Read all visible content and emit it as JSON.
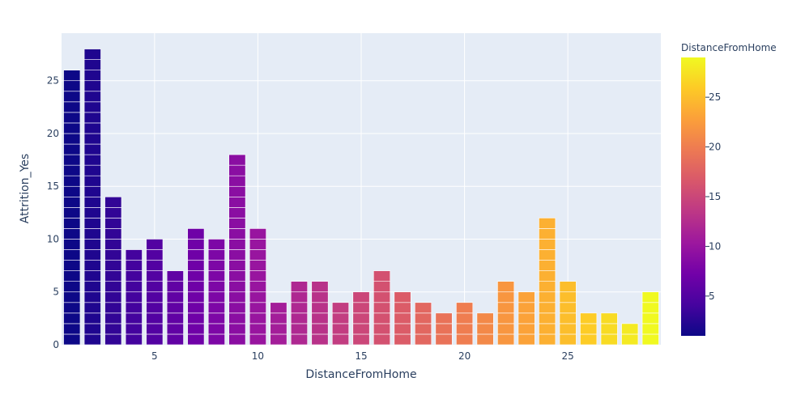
{
  "chart_data": {
    "type": "bar",
    "title": "",
    "xlabel": "DistanceFromHome",
    "ylabel": "Attrition_Yes",
    "x": [
      1,
      2,
      3,
      4,
      5,
      6,
      7,
      8,
      9,
      10,
      11,
      12,
      13,
      14,
      15,
      16,
      17,
      18,
      19,
      20,
      21,
      22,
      23,
      24,
      25,
      26,
      27,
      28,
      29
    ],
    "values": [
      26,
      28,
      14,
      9,
      10,
      7,
      11,
      10,
      18,
      11,
      4,
      6,
      6,
      4,
      5,
      7,
      5,
      4,
      3,
      4,
      3,
      6,
      5,
      12,
      6,
      3,
      3,
      2,
      5
    ],
    "xlim": [
      0.5,
      29.5
    ],
    "ylim": [
      0,
      29.5
    ],
    "x_ticks": [
      5,
      10,
      15,
      20,
      25
    ],
    "y_ticks": [
      0,
      5,
      10,
      15,
      20,
      25
    ],
    "stacked_unit_segments": true,
    "grid": true,
    "plot_background": "#e5ecf6",
    "colorbar": {
      "title": "DistanceFromHome",
      "range": [
        1,
        29
      ],
      "ticks": [
        5,
        10,
        15,
        20,
        25
      ],
      "colorscale": [
        "#0d0887",
        "#46039f",
        "#7201a8",
        "#9c179e",
        "#bd3786",
        "#d8576b",
        "#ed7953",
        "#fb9f3a",
        "#fdca26",
        "#f0f921"
      ]
    }
  }
}
